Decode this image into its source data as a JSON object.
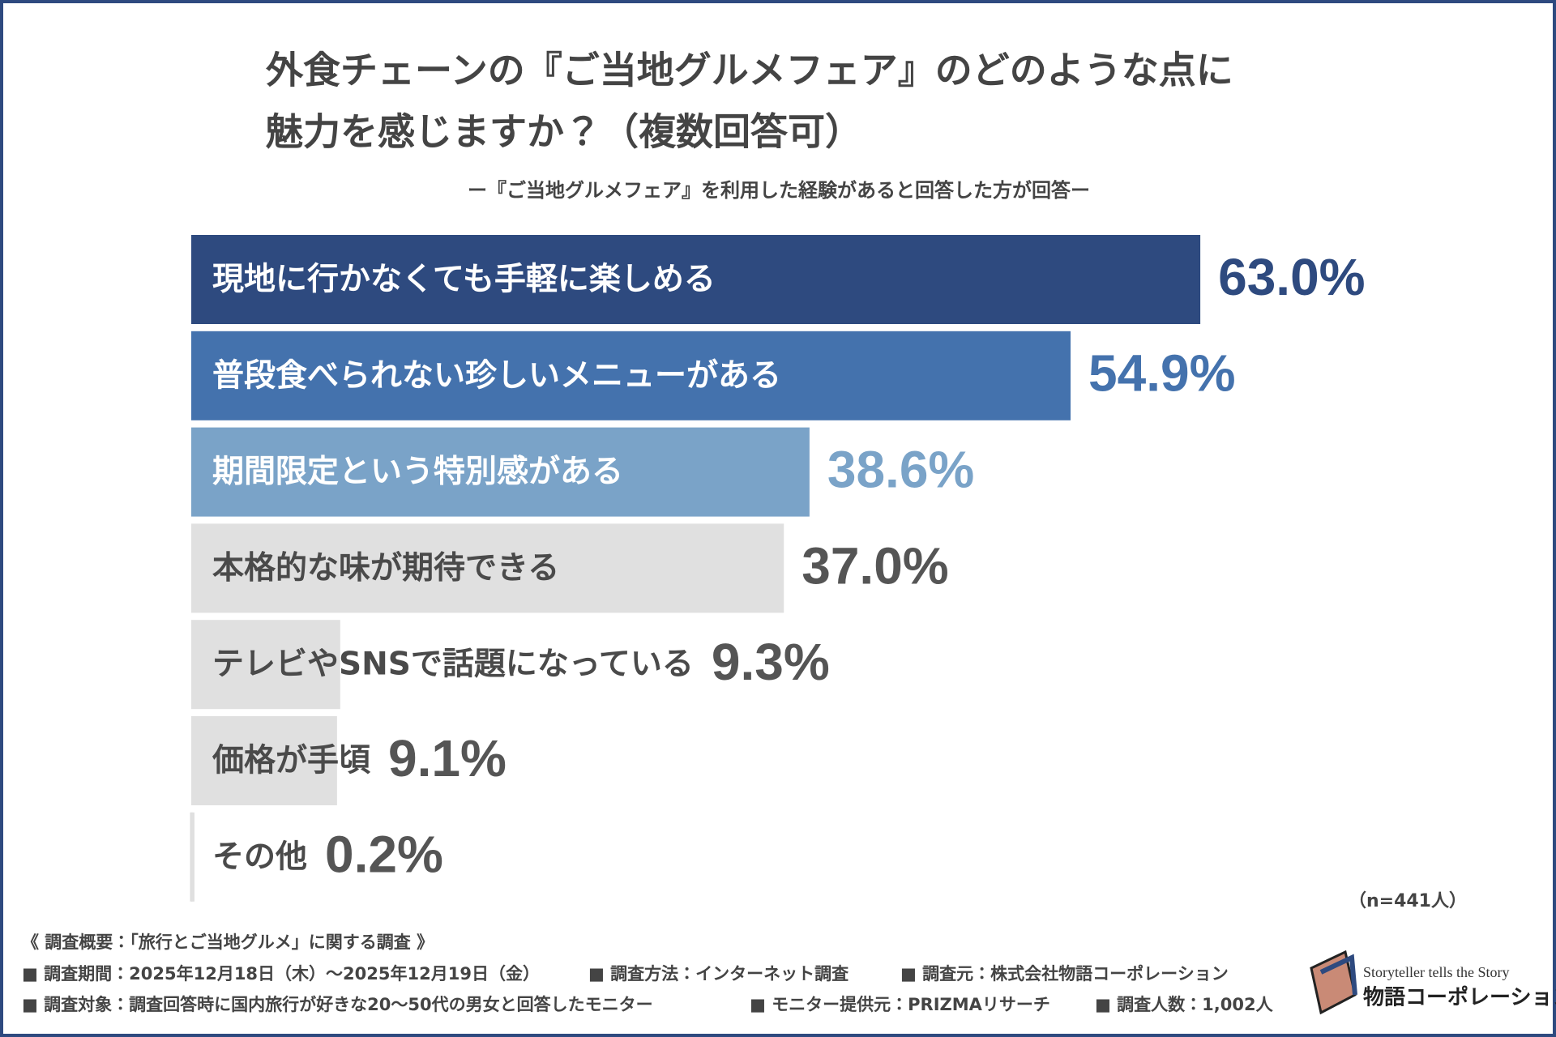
{
  "chart_data": {
    "type": "bar",
    "orientation": "horizontal",
    "title": [
      "外食チェーンの『ご当地グルメフェア』のどのような点に",
      "魅力を感じますか？（複数回答可）"
    ],
    "subtitle": "ー『ご当地グルメフェア』を利用した経験があると回答した方が回答ー",
    "categories": [
      "現地に行かなくても手軽に楽しめる",
      "普段食べられない珍しいメニューがある",
      "期間限定という特別感がある",
      "本格的な味が期待できる",
      "テレビやSNSで話題になっている",
      "価格が手頃",
      "その他"
    ],
    "values": [
      63.0,
      54.9,
      38.6,
      37.0,
      9.3,
      9.1,
      0.2
    ],
    "value_labels": [
      "63.0%",
      "54.9%",
      "38.6%",
      "37.0%",
      "9.3%",
      "9.1%",
      "0.2%"
    ],
    "colors": [
      "#2e4a7f",
      "#4472ad",
      "#7aa3c8",
      "#e0e0e0",
      "#e0e0e0",
      "#e0e0e0",
      "#e0e0e0"
    ],
    "label_colors": [
      "#ffffff",
      "#ffffff",
      "#ffffff",
      "#4a4a4a",
      "#4a4a4a",
      "#4a4a4a",
      "#4a4a4a"
    ],
    "value_label_colors": [
      "#2e4a7f",
      "#4472ad",
      "#7aa3c8",
      "#555555",
      "#555555",
      "#555555",
      "#555555"
    ],
    "sample_note": "（n=441人）",
    "footnotes": [
      [
        "《 調査概要：「旅行とご当地グルメ」に関する調査 》"
      ],
      [
        "■ 調査期間：2025年12月18日（木）～2025年12月19日（金）",
        "■ 調査方法：インターネット調査",
        "■ 調査元：株式会社物語コーポレーション"
      ],
      [
        "■ 調査対象：調査回答時に国内旅行が好きな20～50代の男女と回答したモニター",
        "■ モニター提供元：PRIZMAリサーチ",
        "■ 調査人数：1,002人"
      ]
    ],
    "logo": {
      "tagline": "Storyteller tells the Story",
      "name": "物語コーポレーション"
    }
  }
}
